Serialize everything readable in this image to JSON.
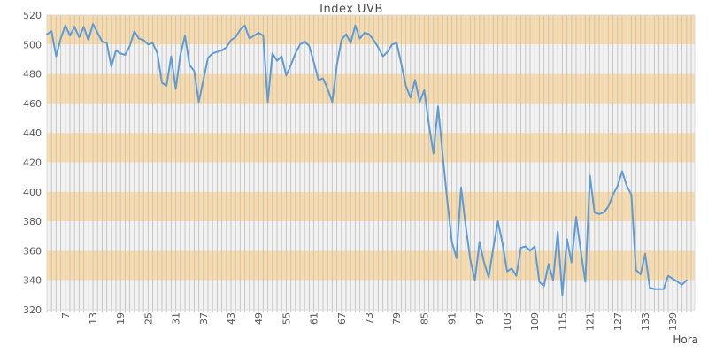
{
  "chart_data": {
    "type": "line",
    "title": "Index UVB",
    "xlabel": "Hora",
    "x_first_hour": 3,
    "x_tick_labels": [
      7,
      13,
      19,
      25,
      31,
      37,
      43,
      49,
      55,
      61,
      67,
      73,
      79,
      85,
      91,
      97,
      103,
      109,
      115,
      121,
      127,
      133,
      139
    ],
    "y_ticks": [
      520,
      500,
      480,
      460,
      440,
      420,
      400,
      380,
      360,
      340,
      320
    ],
    "ylim": [
      320,
      520
    ],
    "grid": "vertical-per-point",
    "legend_position": "none",
    "band_colors": {
      "orange": "#F8DBA8",
      "light": "#F2F2F2"
    },
    "gridline_color": "#C6C6C6",
    "line_color": "#5E9CD8",
    "text_color": "#595959",
    "border_color": "#D9D9D9",
    "series": [
      {
        "name": "Index UVB",
        "values": [
          507,
          509,
          492,
          504,
          513,
          506,
          512,
          505,
          512,
          503,
          514,
          508,
          502,
          501,
          485,
          496,
          494,
          493,
          499,
          509,
          504,
          503,
          500,
          501,
          494,
          474,
          472,
          492,
          470,
          493,
          506,
          486,
          482,
          461,
          476,
          491,
          494,
          495,
          496,
          498,
          503,
          505,
          510,
          513,
          504,
          506,
          508,
          506,
          461,
          494,
          489,
          492,
          479,
          486,
          494,
          500,
          502,
          499,
          488,
          476,
          477,
          470,
          461,
          486,
          503,
          507,
          501,
          513,
          504,
          508,
          507,
          503,
          498,
          492,
          495,
          500,
          501,
          487,
          472,
          464,
          476,
          461,
          469,
          446,
          426,
          458,
          425,
          394,
          366,
          355,
          403,
          377,
          354,
          340,
          366,
          352,
          342,
          362,
          380,
          365,
          346,
          348,
          343,
          362,
          363,
          360,
          363,
          339,
          336,
          351,
          340,
          373,
          330,
          368,
          352,
          383,
          360,
          339,
          411,
          386,
          385,
          386,
          390,
          398,
          404,
          414,
          404,
          398,
          347,
          344,
          358,
          335,
          334,
          334,
          334,
          343,
          341,
          339,
          337,
          340
        ]
      }
    ]
  }
}
